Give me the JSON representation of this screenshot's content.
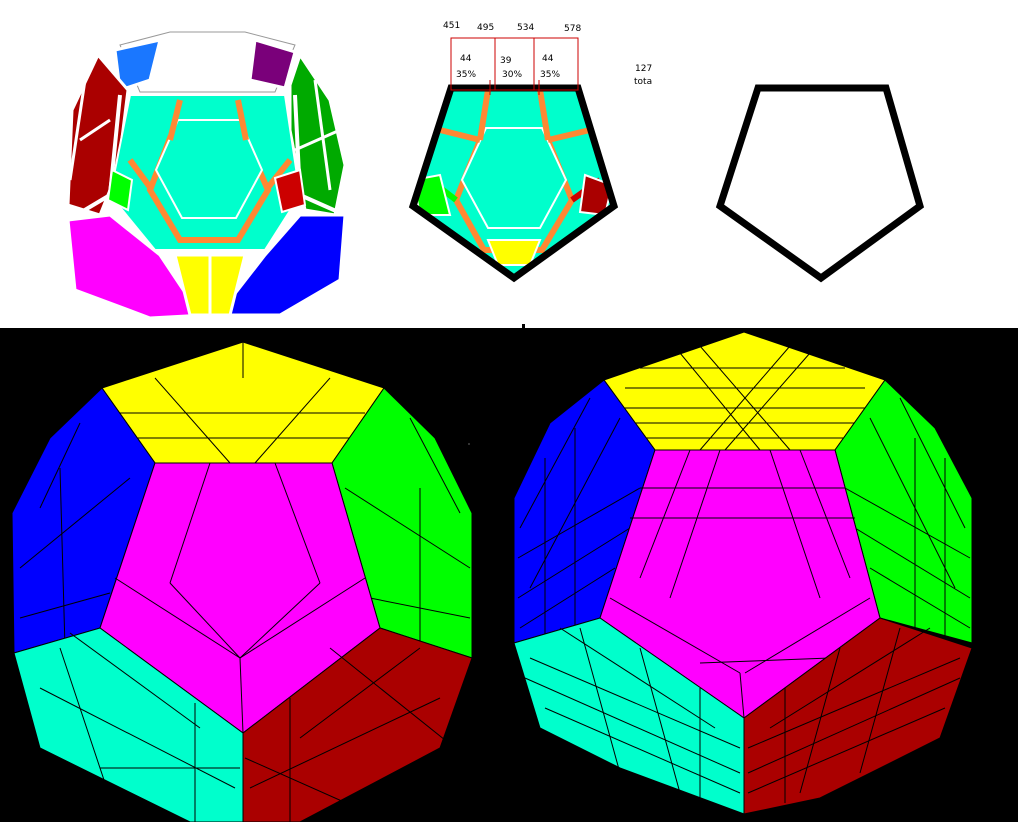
{
  "measurements": {
    "positions": [
      "451",
      "495",
      "534",
      "578"
    ],
    "segments": [
      {
        "length": "44",
        "percent": "35%"
      },
      {
        "length": "39",
        "percent": "30%"
      },
      {
        "length": "44",
        "percent": "35%"
      }
    ],
    "total_value": "127",
    "total_label": "tota"
  },
  "colors": {
    "yellow": "#ffff00",
    "magenta": "#ff00ff",
    "green": "#00ff00",
    "blue": "#0000ff",
    "cyan": "#00ffcc",
    "red": "#aa0000",
    "orange": "#ff8833",
    "purple": "#7a007a",
    "outline": "#000000"
  }
}
